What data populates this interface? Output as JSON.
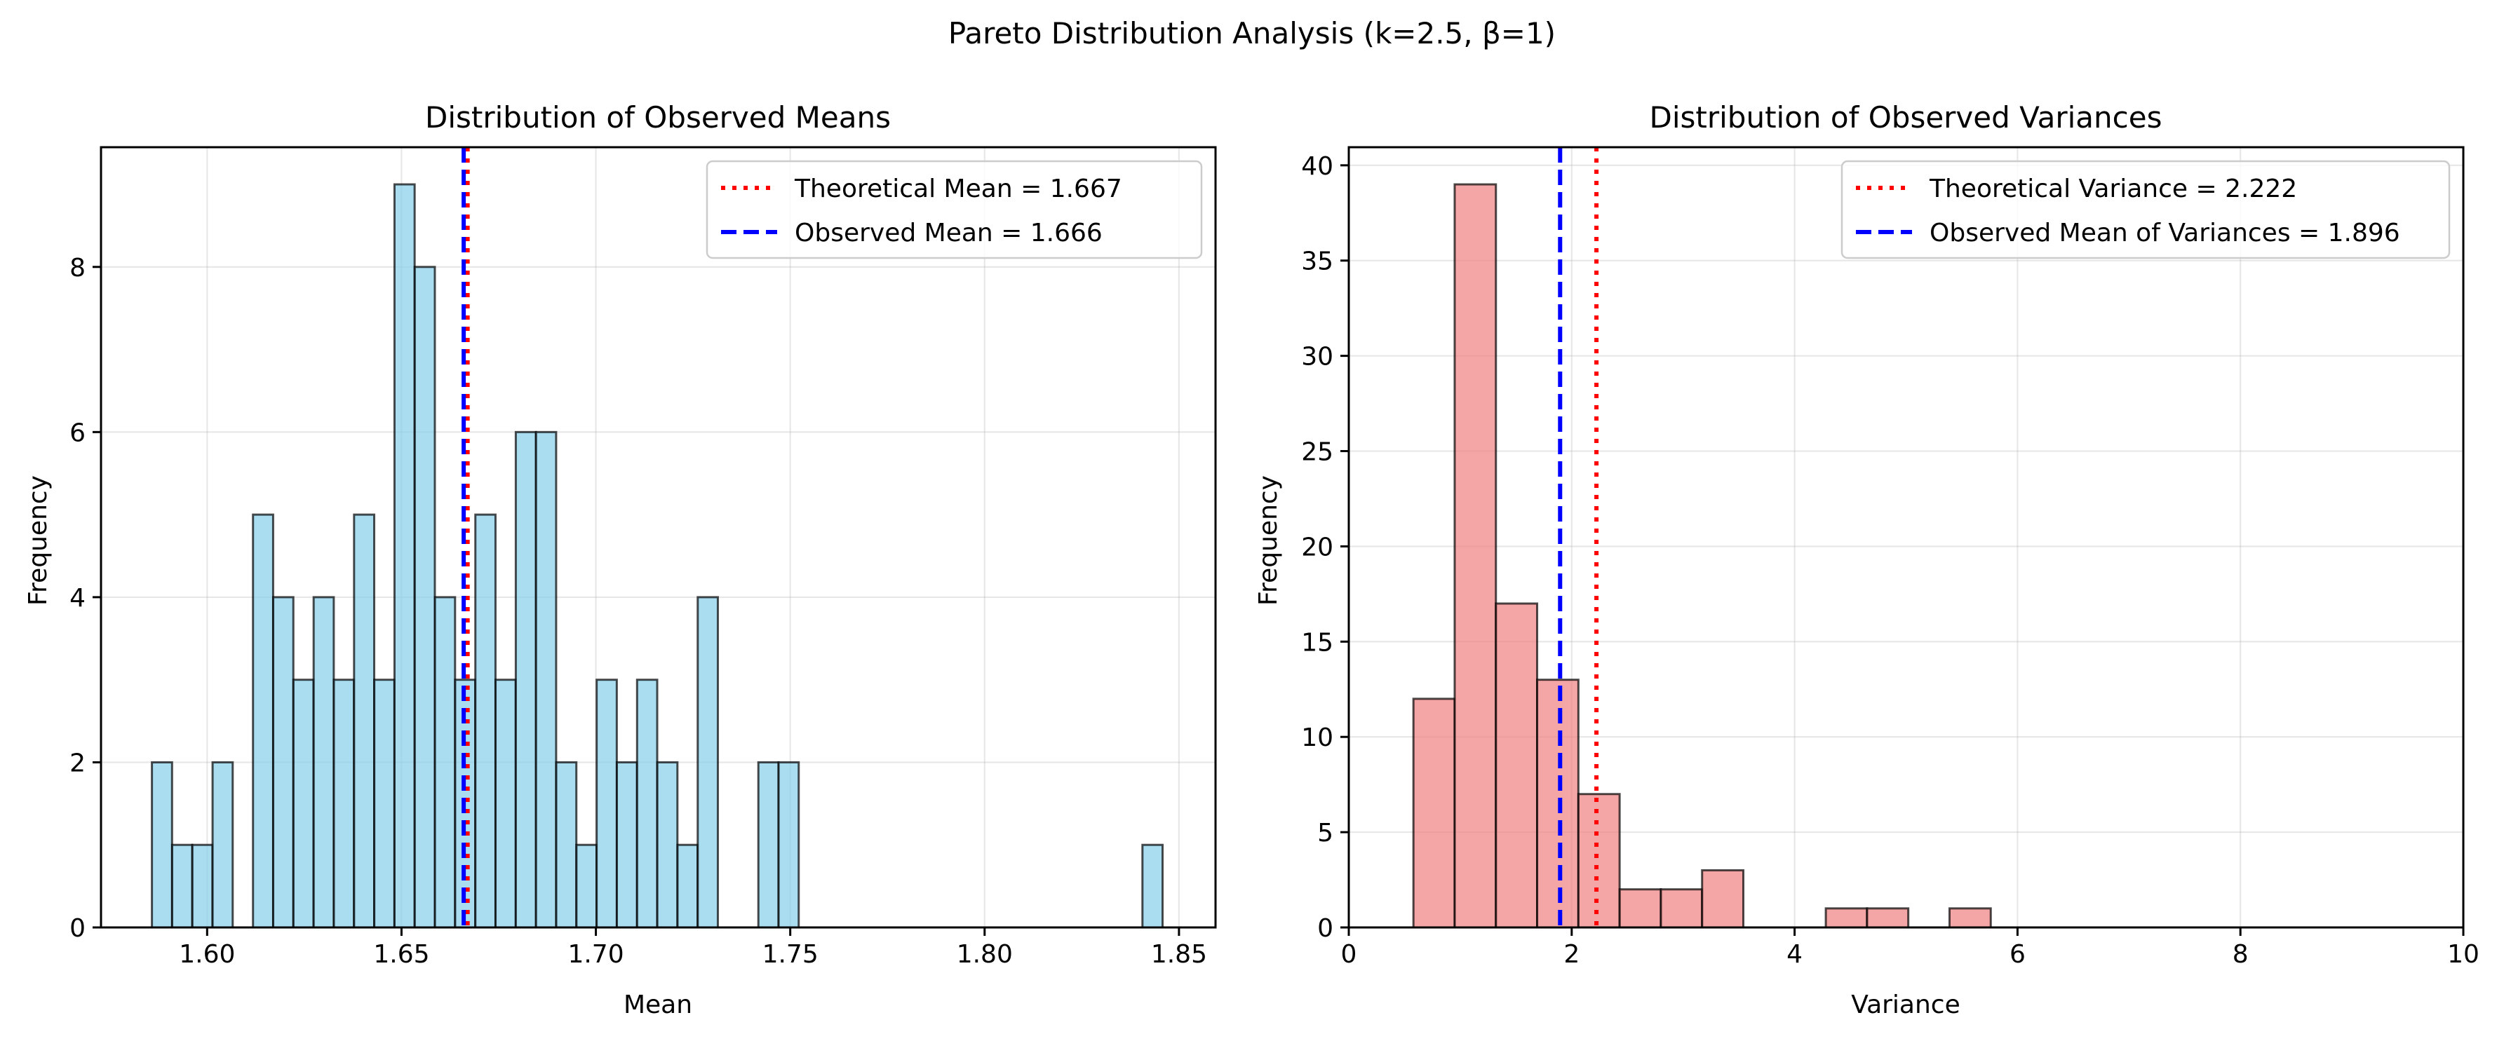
{
  "suptitle": "Pareto Distribution Analysis (k=2.5, β=1)",
  "chart_data": [
    {
      "type": "bar",
      "title": "Distribution of Observed Means",
      "xlabel": "Mean",
      "ylabel": "Frequency",
      "xlim": [
        1.5727,
        1.8594
      ],
      "ylim": [
        0,
        9.45
      ],
      "xticks": [
        1.6,
        1.65,
        1.7,
        1.75,
        1.8,
        1.85
      ],
      "xtick_labels": [
        "1.60",
        "1.65",
        "1.70",
        "1.75",
        "1.80",
        "1.85"
      ],
      "yticks": [
        0,
        2,
        4,
        6,
        8
      ],
      "ytick_labels": [
        "0",
        "2",
        "4",
        "6",
        "8"
      ],
      "bin_width": 0.00518,
      "bins": [
        {
          "x0": 1.5858,
          "count": 2
        },
        {
          "x0": 1.591,
          "count": 1
        },
        {
          "x0": 1.5962,
          "count": 1
        },
        {
          "x0": 1.6014,
          "count": 2
        },
        {
          "x0": 1.6066,
          "count": 0
        },
        {
          "x0": 1.6118,
          "count": 5
        },
        {
          "x0": 1.617,
          "count": 4
        },
        {
          "x0": 1.6222,
          "count": 3
        },
        {
          "x0": 1.6274,
          "count": 4
        },
        {
          "x0": 1.6326,
          "count": 3
        },
        {
          "x0": 1.6378,
          "count": 5
        },
        {
          "x0": 1.643,
          "count": 3
        },
        {
          "x0": 1.6482,
          "count": 9
        },
        {
          "x0": 1.6534,
          "count": 8
        },
        {
          "x0": 1.6586,
          "count": 4
        },
        {
          "x0": 1.6638,
          "count": 3
        },
        {
          "x0": 1.669,
          "count": 5
        },
        {
          "x0": 1.6742,
          "count": 3
        },
        {
          "x0": 1.6794,
          "count": 6
        },
        {
          "x0": 1.6846,
          "count": 6
        },
        {
          "x0": 1.6898,
          "count": 2
        },
        {
          "x0": 1.695,
          "count": 1
        },
        {
          "x0": 1.7002,
          "count": 3
        },
        {
          "x0": 1.7054,
          "count": 2
        },
        {
          "x0": 1.7106,
          "count": 3
        },
        {
          "x0": 1.7158,
          "count": 2
        },
        {
          "x0": 1.721,
          "count": 1
        },
        {
          "x0": 1.7262,
          "count": 4
        },
        {
          "x0": 1.7418,
          "count": 2
        },
        {
          "x0": 1.747,
          "count": 2
        },
        {
          "x0": 1.8406,
          "count": 1
        }
      ],
      "bar_color": "#87ceeb",
      "edge_color": "#000000",
      "vlines": [
        {
          "label": "Theoretical Mean = 1.667",
          "x": 1.667,
          "color": "#ff0000",
          "style": "dotted"
        },
        {
          "label": "Observed Mean = 1.666",
          "x": 1.666,
          "color": "#0000ff",
          "style": "dashed"
        }
      ],
      "legend": "upper right",
      "grid": true
    },
    {
      "type": "bar",
      "title": "Distribution of Observed Variances",
      "xlabel": "Variance",
      "ylabel": "Frequency",
      "xlim": [
        0,
        10
      ],
      "ylim": [
        0,
        40.95
      ],
      "xticks": [
        0,
        2,
        4,
        6,
        8,
        10
      ],
      "xtick_labels": [
        "0",
        "2",
        "4",
        "6",
        "8",
        "10"
      ],
      "yticks": [
        0,
        5,
        10,
        15,
        20,
        25,
        30,
        35,
        40
      ],
      "ytick_labels": [
        "0",
        "5",
        "10",
        "15",
        "20",
        "25",
        "30",
        "35",
        "40"
      ],
      "bin_width": 0.37,
      "bins": [
        {
          "x0": 0.58,
          "count": 12
        },
        {
          "x0": 0.95,
          "count": 39
        },
        {
          "x0": 1.32,
          "count": 17
        },
        {
          "x0": 1.69,
          "count": 13
        },
        {
          "x0": 2.06,
          "count": 7
        },
        {
          "x0": 2.43,
          "count": 2
        },
        {
          "x0": 2.8,
          "count": 2
        },
        {
          "x0": 3.17,
          "count": 3
        },
        {
          "x0": 4.28,
          "count": 1
        },
        {
          "x0": 4.65,
          "count": 1
        },
        {
          "x0": 5.39,
          "count": 1
        }
      ],
      "bar_color": "#f08080",
      "edge_color": "#000000",
      "vlines": [
        {
          "label": "Theoretical Variance = 2.222",
          "x": 2.222,
          "color": "#ff0000",
          "style": "dotted"
        },
        {
          "label": "Observed Mean of Variances = 1.896",
          "x": 1.896,
          "color": "#0000ff",
          "style": "dashed"
        }
      ],
      "legend": "upper right",
      "grid": true
    }
  ]
}
